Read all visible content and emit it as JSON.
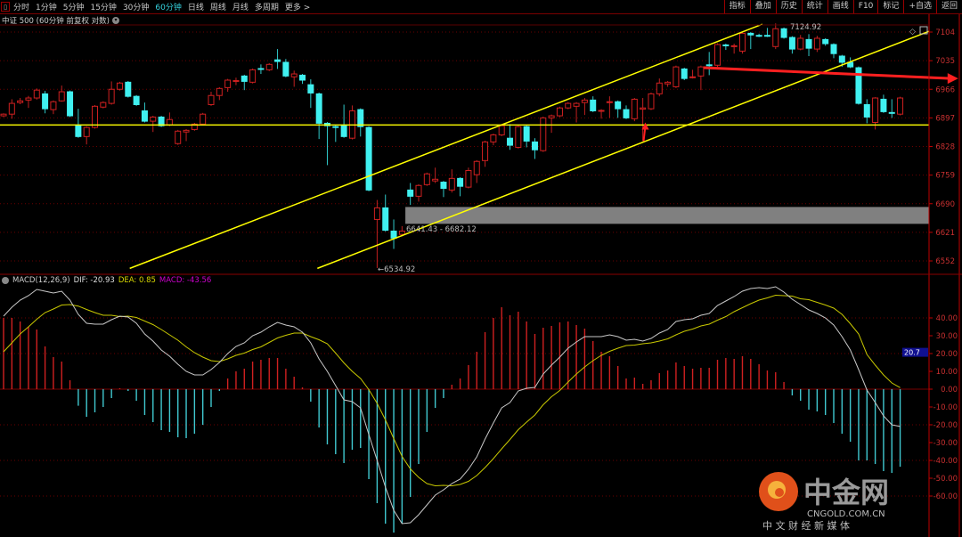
{
  "toolbar": {
    "tabs": [
      "分时",
      "1分钟",
      "5分钟",
      "15分钟",
      "30分钟",
      "60分钟",
      "日线",
      "周线",
      "月线",
      "多周期",
      "更多 >"
    ],
    "active_tab": "60分钟",
    "right_buttons": [
      "指标",
      "叠加",
      "历史",
      "统计",
      "画线",
      "F10",
      "标记",
      "+自选",
      "返回"
    ]
  },
  "title": "中证 500 (60分钟 前复权 对数)",
  "macd_legend": {
    "name": "MACD(12,26,9)",
    "dif": "DIF: -20.93",
    "dea": "DEA: 0.85",
    "macd": "MACD: -43.56"
  },
  "colors": {
    "up": "#d02020",
    "down": "#40f0f0",
    "dif": "#c8c8c8",
    "dea": "#c8c800",
    "macd_label": "#d000d0",
    "channel": "#ffff00",
    "arrow": "#ff2020",
    "zone": "#808080",
    "axis": "#c02020"
  },
  "watermark": {
    "brand": "中金网",
    "url": "CNGOLD.COM.CN",
    "tagline": "中 文 财 经 新 媒 体"
  },
  "chart_data": [
    {
      "type": "candlestick",
      "title": "",
      "yscale": "log",
      "ylim": [
        6520,
        7130
      ],
      "yticks": [
        "7104",
        "7035",
        "6966",
        "6897",
        "6828",
        "6759",
        "6690",
        "6621",
        "6552"
      ],
      "candle_format": [
        "open",
        "high",
        "low",
        "close"
      ],
      "candles": [
        [
          6902,
          6908,
          6899,
          6906
        ],
        [
          6906,
          6942,
          6895,
          6932
        ],
        [
          6934,
          6945,
          6930,
          6938
        ],
        [
          6940,
          6950,
          6921,
          6945
        ],
        [
          6945,
          6968,
          6941,
          6964
        ],
        [
          6955,
          6962,
          6908,
          6919
        ],
        [
          6917,
          6939,
          6906,
          6936
        ],
        [
          6938,
          6975,
          6936,
          6960
        ],
        [
          6960,
          6963,
          6899,
          6902
        ],
        [
          6880,
          6919,
          6849,
          6852
        ],
        [
          6852,
          6877,
          6833,
          6874
        ],
        [
          6874,
          6928,
          6871,
          6925
        ],
        [
          6923,
          6937,
          6920,
          6934
        ],
        [
          6932,
          6985,
          6929,
          6966
        ],
        [
          6966,
          6984,
          6963,
          6981
        ],
        [
          6983,
          6986,
          6946,
          6949
        ],
        [
          6949,
          6952,
          6926,
          6929
        ],
        [
          6914,
          6934,
          6886,
          6889
        ],
        [
          6889,
          6902,
          6863,
          6899
        ],
        [
          6899,
          6902,
          6875,
          6878
        ],
        [
          6880,
          6910,
          6877,
          6893
        ],
        [
          6835,
          6868,
          6832,
          6865
        ],
        [
          6863,
          6870,
          6841,
          6867
        ],
        [
          6869,
          6885,
          6866,
          6882
        ],
        [
          6882,
          6909,
          6879,
          6906
        ],
        [
          6929,
          6960,
          6926,
          6951
        ],
        [
          6951,
          6971,
          6940,
          6968
        ],
        [
          6970,
          6991,
          6960,
          6988
        ],
        [
          6985,
          6994,
          6976,
          6987
        ],
        [
          6998,
          7001,
          6964,
          6985
        ],
        [
          6983,
          7016,
          6980,
          7013
        ],
        [
          7016,
          7026,
          7003,
          7014
        ],
        [
          7013,
          7029,
          7010,
          7026
        ],
        [
          7037,
          7063,
          7015,
          7033
        ],
        [
          7031,
          7039,
          6995,
          6998
        ],
        [
          6996,
          7011,
          6972,
          7003
        ],
        [
          7000,
          7003,
          6979,
          6988
        ],
        [
          6977,
          6990,
          6921,
          6957
        ],
        [
          6955,
          6958,
          6846,
          6884
        ],
        [
          6884,
          6887,
          6783,
          6878
        ],
        [
          6876,
          6880,
          6839,
          6874
        ],
        [
          6880,
          6929,
          6849,
          6852
        ],
        [
          6848,
          6927,
          6845,
          6914
        ],
        [
          6917,
          6920,
          6852,
          6876
        ],
        [
          6874,
          6877,
          6720,
          6723
        ],
        [
          6652,
          6699,
          6534.92,
          6680
        ],
        [
          6680,
          6712,
          6623,
          6626
        ],
        [
          6624,
          6652,
          6581,
          6607
        ],
        [
          6616,
          6636,
          6611,
          6624
        ],
        [
          6723,
          6740,
          6687,
          6708
        ],
        [
          6708,
          6737,
          6695,
          6734
        ],
        [
          6736,
          6765,
          6733,
          6762
        ],
        [
          6745,
          6777,
          6740,
          6749
        ],
        [
          6742,
          6745,
          6706,
          6727
        ],
        [
          6723,
          6773,
          6717,
          6751
        ],
        [
          6751,
          6754,
          6708,
          6732
        ],
        [
          6730,
          6777,
          6727,
          6770
        ],
        [
          6760,
          6795,
          6740,
          6792
        ],
        [
          6794,
          6842,
          6779,
          6839
        ],
        [
          6839,
          6859,
          6831,
          6856
        ],
        [
          6856,
          6881,
          6853,
          6878
        ],
        [
          6848,
          6882,
          6820,
          6831
        ],
        [
          6826,
          6879,
          6823,
          6876
        ],
        [
          6876,
          6879,
          6826,
          6841
        ],
        [
          6839,
          6848,
          6798,
          6820
        ],
        [
          6818,
          6900,
          6815,
          6897
        ],
        [
          6897,
          6905,
          6861,
          6902
        ],
        [
          6902,
          6924,
          6899,
          6921
        ],
        [
          6921,
          6935,
          6918,
          6932
        ],
        [
          6925,
          6935,
          6886,
          6932
        ],
        [
          6934,
          6945,
          6904,
          6940
        ],
        [
          6940,
          6949,
          6911,
          6914
        ],
        [
          6913,
          6918,
          6895,
          6915
        ],
        [
          6934,
          6949,
          6897,
          6936
        ],
        [
          6936,
          6939,
          6897,
          6919
        ],
        [
          6917,
          6927,
          6894,
          6897
        ],
        [
          6895,
          6945,
          6889,
          6942
        ],
        [
          6918,
          6945,
          6841,
          6921
        ],
        [
          6919,
          6958,
          6916,
          6955
        ],
        [
          6955,
          6992,
          6949,
          6981
        ],
        [
          6979,
          6986,
          6972,
          6983
        ],
        [
          6972,
          7023,
          6969,
          7020
        ],
        [
          7015,
          7018,
          6988,
          6992
        ],
        [
          6994,
          7013,
          6992,
          6996
        ],
        [
          6998,
          7023,
          6964,
          7020
        ],
        [
          7025,
          7056,
          7000,
          7023
        ],
        [
          7024,
          7077,
          7020,
          7074
        ],
        [
          7073,
          7076,
          7061,
          7071
        ],
        [
          7069,
          7076,
          7052,
          7071
        ],
        [
          7058,
          7104,
          7052,
          7101
        ],
        [
          7101,
          7104,
          7063,
          7097
        ],
        [
          7096,
          7100,
          7092,
          7094
        ],
        [
          7096,
          7114,
          7092,
          7095
        ],
        [
          7069,
          7124.92,
          7063,
          7112
        ],
        [
          7112,
          7115,
          7088,
          7091
        ],
        [
          7091,
          7094,
          7052,
          7063
        ],
        [
          7063,
          7097,
          7060,
          7089
        ],
        [
          7086,
          7099,
          7046,
          7065
        ],
        [
          7063,
          7095,
          7056,
          7089
        ],
        [
          7086,
          7089,
          7071,
          7076
        ],
        [
          7074,
          7077,
          7041,
          7052
        ],
        [
          7046,
          7049,
          7020,
          7031
        ],
        [
          7031,
          7043,
          7017,
          7020
        ],
        [
          7018,
          7021,
          6929,
          6932
        ],
        [
          6929,
          6942,
          6884,
          6899
        ],
        [
          6886,
          6947,
          6869,
          6945
        ],
        [
          6942,
          6953,
          6909,
          6912
        ],
        [
          6910,
          6942,
          6897,
          6908
        ],
        [
          6906,
          6948,
          6903,
          6945
        ]
      ],
      "annotations": {
        "high_label": "7124.92",
        "low_label": "←6534.92",
        "zone_label": "6641.43 - 6682.12",
        "zone": {
          "from_index": 48.4,
          "to_index": 111.5,
          "low": 6641.43,
          "high": 6682.12
        },
        "horizontal_line": 6880,
        "channel_lines": [
          {
            "from": [
              15.2,
              6534
            ],
            "to": [
              91.4,
              7123
            ]
          },
          {
            "from": [
              37.8,
              6534
            ],
            "to": [
              111.5,
              7106
            ]
          }
        ],
        "arrow_line": {
          "from": [
            84.3,
            7018
          ],
          "to": [
            115,
            6992
          ]
        },
        "up_arrow": {
          "index": 77.2,
          "from": 6841,
          "to": 6886
        }
      }
    },
    {
      "type": "bar+line",
      "title": "MACD(12,26,9)",
      "ylim": [
        -65,
        60
      ],
      "yticks": [
        "40.00",
        "30.00",
        "20.00",
        "10.00",
        "0.00",
        "-10.00",
        "-20.00",
        "-30.00",
        "-40.00",
        "-50.00",
        "-60.00"
      ],
      "crosshair_value": "20.7",
      "dea_rule": "DEA = DIF - MACD/2",
      "dif": [
        41,
        46,
        50,
        52.5,
        56,
        55,
        54,
        55,
        50,
        42,
        37,
        36.5,
        36.5,
        39,
        41,
        40.5,
        37,
        31,
        27,
        22,
        18.5,
        14,
        10,
        8,
        8,
        11,
        15,
        20,
        24,
        26,
        30,
        32,
        35,
        37.5,
        36,
        35,
        32,
        26,
        17,
        10,
        2,
        -6,
        -7,
        -10.5,
        -25.5,
        -40,
        -55,
        -68,
        -75.5,
        -75,
        -70.5,
        -65,
        -59.5,
        -56.5,
        -53,
        -50.5,
        -45,
        -38,
        -28,
        -19,
        -10.5,
        -7.5,
        -1,
        0.5,
        1,
        8.5,
        13.5,
        18,
        23,
        26.5,
        29.5,
        29.5,
        29.5,
        30.5,
        29.5,
        27.5,
        28,
        27,
        28.5,
        31.5,
        33.5,
        38,
        39,
        39.5,
        41.5,
        42.5,
        47,
        49.5,
        52,
        55,
        56.5,
        57,
        56.5,
        57.5,
        54.5,
        50.5,
        47.5,
        44.5,
        42.5,
        40,
        36,
        29.5,
        22,
        11,
        -0.5,
        -7.5,
        -15,
        -20,
        -20.93
      ],
      "macd": [
        40,
        40,
        38,
        35,
        33.5,
        24,
        18,
        15.5,
        5,
        -9.3,
        -15.5,
        -13,
        -10,
        -5,
        0.5,
        -1,
        -6.5,
        -14.5,
        -18.5,
        -23,
        -24,
        -27,
        -27.5,
        -25,
        -20,
        -10,
        -1,
        6,
        10,
        11.5,
        15.5,
        16.5,
        17.5,
        17.5,
        11.5,
        7,
        1,
        -7,
        -21.5,
        -31,
        -36.5,
        -41.5,
        -34,
        -33,
        -50.5,
        -64,
        -75.5,
        -80.5,
        -75.5,
        -60.5,
        -42,
        -24,
        -10.5,
        -5,
        2.5,
        6,
        13.5,
        21,
        32,
        40,
        46,
        41.5,
        43.5,
        38,
        31,
        34.5,
        35.5,
        37.5,
        38,
        36,
        34,
        27,
        21,
        18.5,
        13,
        6,
        6.5,
        3,
        5,
        9,
        10.5,
        15,
        13,
        11.5,
        12,
        12,
        16.5,
        17.5,
        17,
        18.5,
        17,
        14,
        10.5,
        9.5,
        4,
        -3.5,
        -6.5,
        -11.5,
        -12.5,
        -14.5,
        -19,
        -25,
        -29.5,
        -40,
        -40,
        -42,
        -46,
        -47,
        -43.56
      ]
    }
  ]
}
